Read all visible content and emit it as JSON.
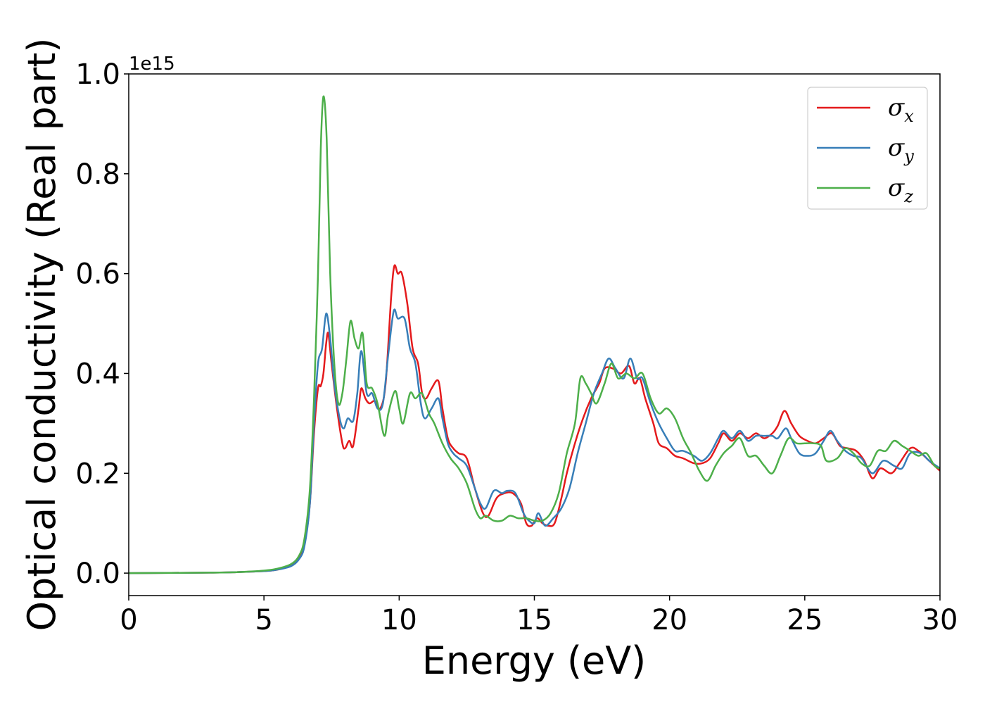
{
  "chart_data": {
    "type": "line",
    "xlabel": "Energy (eV)",
    "ylabel": "Optical conductivity (Real part)",
    "y_offset_label": "1e15",
    "xlim": [
      0,
      30
    ],
    "ylim": [
      -0.045,
      1.0
    ],
    "x_ticks": [
      0,
      5,
      10,
      15,
      20,
      25,
      30
    ],
    "x_tick_labels": [
      "0",
      "5",
      "10",
      "15",
      "20",
      "25",
      "30"
    ],
    "y_ticks": [
      0.0,
      0.2,
      0.4,
      0.6,
      0.8,
      1.0
    ],
    "y_tick_labels": [
      "0.0",
      "0.2",
      "0.4",
      "0.6",
      "0.8",
      "1.0"
    ],
    "grid": false,
    "legend_position": "top-right",
    "series": [
      {
        "symbol": "σ",
        "subscript": "x",
        "color": "#e41a1c",
        "points": [
          [
            0,
            0
          ],
          [
            3,
            0.001
          ],
          [
            4,
            0.002
          ],
          [
            5,
            0.004
          ],
          [
            5.5,
            0.007
          ],
          [
            6,
            0.015
          ],
          [
            6.3,
            0.03
          ],
          [
            6.5,
            0.06
          ],
          [
            6.7,
            0.14
          ],
          [
            6.85,
            0.28
          ],
          [
            7.0,
            0.37
          ],
          [
            7.1,
            0.375
          ],
          [
            7.2,
            0.4
          ],
          [
            7.3,
            0.46
          ],
          [
            7.38,
            0.48
          ],
          [
            7.5,
            0.42
          ],
          [
            7.7,
            0.33
          ],
          [
            7.9,
            0.26
          ],
          [
            8.0,
            0.25
          ],
          [
            8.15,
            0.265
          ],
          [
            8.3,
            0.255
          ],
          [
            8.5,
            0.33
          ],
          [
            8.6,
            0.37
          ],
          [
            8.75,
            0.35
          ],
          [
            8.9,
            0.34
          ],
          [
            9.1,
            0.345
          ],
          [
            9.3,
            0.33
          ],
          [
            9.5,
            0.38
          ],
          [
            9.7,
            0.55
          ],
          [
            9.82,
            0.615
          ],
          [
            9.95,
            0.6
          ],
          [
            10.1,
            0.6
          ],
          [
            10.3,
            0.54
          ],
          [
            10.5,
            0.45
          ],
          [
            10.7,
            0.42
          ],
          [
            10.85,
            0.36
          ],
          [
            11.0,
            0.35
          ],
          [
            11.2,
            0.37
          ],
          [
            11.45,
            0.385
          ],
          [
            11.6,
            0.33
          ],
          [
            11.8,
            0.27
          ],
          [
            12.0,
            0.25
          ],
          [
            12.2,
            0.24
          ],
          [
            12.5,
            0.23
          ],
          [
            12.8,
            0.17
          ],
          [
            13.1,
            0.12
          ],
          [
            13.3,
            0.115
          ],
          [
            13.6,
            0.15
          ],
          [
            13.9,
            0.16
          ],
          [
            14.2,
            0.16
          ],
          [
            14.5,
            0.14
          ],
          [
            14.7,
            0.1
          ],
          [
            14.9,
            0.095
          ],
          [
            15.1,
            0.11
          ],
          [
            15.3,
            0.1
          ],
          [
            15.5,
            0.095
          ],
          [
            15.75,
            0.1
          ],
          [
            16.0,
            0.15
          ],
          [
            16.2,
            0.2
          ],
          [
            16.5,
            0.26
          ],
          [
            16.8,
            0.31
          ],
          [
            17.1,
            0.35
          ],
          [
            17.4,
            0.38
          ],
          [
            17.6,
            0.41
          ],
          [
            17.9,
            0.41
          ],
          [
            18.2,
            0.4
          ],
          [
            18.5,
            0.415
          ],
          [
            18.7,
            0.38
          ],
          [
            18.9,
            0.39
          ],
          [
            19.1,
            0.35
          ],
          [
            19.4,
            0.3
          ],
          [
            19.6,
            0.26
          ],
          [
            19.9,
            0.25
          ],
          [
            20.2,
            0.235
          ],
          [
            20.5,
            0.23
          ],
          [
            20.9,
            0.22
          ],
          [
            21.2,
            0.22
          ],
          [
            21.5,
            0.23
          ],
          [
            21.8,
            0.26
          ],
          [
            22.0,
            0.28
          ],
          [
            22.3,
            0.265
          ],
          [
            22.6,
            0.28
          ],
          [
            22.9,
            0.27
          ],
          [
            23.2,
            0.28
          ],
          [
            23.5,
            0.27
          ],
          [
            23.8,
            0.28
          ],
          [
            24.0,
            0.295
          ],
          [
            24.25,
            0.325
          ],
          [
            24.5,
            0.3
          ],
          [
            24.8,
            0.275
          ],
          [
            25.1,
            0.265
          ],
          [
            25.4,
            0.26
          ],
          [
            25.7,
            0.27
          ],
          [
            26.0,
            0.28
          ],
          [
            26.3,
            0.255
          ],
          [
            26.6,
            0.25
          ],
          [
            26.9,
            0.245
          ],
          [
            27.2,
            0.225
          ],
          [
            27.5,
            0.19
          ],
          [
            27.8,
            0.21
          ],
          [
            28.2,
            0.2
          ],
          [
            28.5,
            0.22
          ],
          [
            28.9,
            0.25
          ],
          [
            29.2,
            0.245
          ],
          [
            29.6,
            0.225
          ],
          [
            30,
            0.205
          ]
        ]
      },
      {
        "symbol": "σ",
        "subscript": "y",
        "color": "#377eb8",
        "points": [
          [
            0,
            0
          ],
          [
            3,
            0.001
          ],
          [
            4,
            0.002
          ],
          [
            5,
            0.004
          ],
          [
            5.5,
            0.007
          ],
          [
            6,
            0.014
          ],
          [
            6.3,
            0.028
          ],
          [
            6.5,
            0.055
          ],
          [
            6.7,
            0.14
          ],
          [
            6.85,
            0.3
          ],
          [
            7.0,
            0.42
          ],
          [
            7.15,
            0.45
          ],
          [
            7.3,
            0.52
          ],
          [
            7.45,
            0.47
          ],
          [
            7.6,
            0.38
          ],
          [
            7.8,
            0.31
          ],
          [
            7.95,
            0.29
          ],
          [
            8.1,
            0.31
          ],
          [
            8.3,
            0.305
          ],
          [
            8.45,
            0.36
          ],
          [
            8.6,
            0.445
          ],
          [
            8.8,
            0.36
          ],
          [
            9.0,
            0.36
          ],
          [
            9.2,
            0.33
          ],
          [
            9.4,
            0.34
          ],
          [
            9.6,
            0.44
          ],
          [
            9.8,
            0.525
          ],
          [
            9.95,
            0.51
          ],
          [
            10.2,
            0.51
          ],
          [
            10.4,
            0.45
          ],
          [
            10.6,
            0.42
          ],
          [
            10.8,
            0.34
          ],
          [
            10.95,
            0.31
          ],
          [
            11.2,
            0.33
          ],
          [
            11.45,
            0.35
          ],
          [
            11.6,
            0.31
          ],
          [
            11.8,
            0.26
          ],
          [
            12.0,
            0.24
          ],
          [
            12.2,
            0.23
          ],
          [
            12.5,
            0.215
          ],
          [
            12.8,
            0.17
          ],
          [
            13.0,
            0.14
          ],
          [
            13.2,
            0.13
          ],
          [
            13.5,
            0.165
          ],
          [
            13.8,
            0.16
          ],
          [
            14.0,
            0.165
          ],
          [
            14.3,
            0.16
          ],
          [
            14.6,
            0.12
          ],
          [
            14.8,
            0.105
          ],
          [
            15.0,
            0.1
          ],
          [
            15.15,
            0.12
          ],
          [
            15.4,
            0.095
          ],
          [
            15.7,
            0.11
          ],
          [
            16.0,
            0.13
          ],
          [
            16.3,
            0.17
          ],
          [
            16.6,
            0.24
          ],
          [
            16.9,
            0.3
          ],
          [
            17.2,
            0.36
          ],
          [
            17.5,
            0.4
          ],
          [
            17.75,
            0.43
          ],
          [
            18.0,
            0.41
          ],
          [
            18.3,
            0.39
          ],
          [
            18.55,
            0.43
          ],
          [
            18.8,
            0.39
          ],
          [
            19.0,
            0.39
          ],
          [
            19.3,
            0.34
          ],
          [
            19.6,
            0.3
          ],
          [
            19.9,
            0.27
          ],
          [
            20.2,
            0.245
          ],
          [
            20.5,
            0.245
          ],
          [
            20.9,
            0.235
          ],
          [
            21.2,
            0.225
          ],
          [
            21.5,
            0.24
          ],
          [
            21.8,
            0.27
          ],
          [
            22.0,
            0.285
          ],
          [
            22.3,
            0.27
          ],
          [
            22.6,
            0.285
          ],
          [
            22.9,
            0.265
          ],
          [
            23.2,
            0.275
          ],
          [
            23.5,
            0.275
          ],
          [
            23.8,
            0.275
          ],
          [
            24.0,
            0.27
          ],
          [
            24.3,
            0.29
          ],
          [
            24.5,
            0.27
          ],
          [
            24.8,
            0.24
          ],
          [
            25.1,
            0.235
          ],
          [
            25.4,
            0.24
          ],
          [
            25.7,
            0.265
          ],
          [
            25.95,
            0.285
          ],
          [
            26.2,
            0.265
          ],
          [
            26.5,
            0.245
          ],
          [
            26.8,
            0.235
          ],
          [
            27.1,
            0.23
          ],
          [
            27.5,
            0.2
          ],
          [
            27.9,
            0.225
          ],
          [
            28.3,
            0.215
          ],
          [
            28.6,
            0.21
          ],
          [
            28.9,
            0.24
          ],
          [
            29.3,
            0.24
          ],
          [
            29.6,
            0.225
          ],
          [
            30,
            0.21
          ]
        ]
      },
      {
        "symbol": "σ",
        "subscript": "z",
        "color": "#4daf4a",
        "points": [
          [
            0,
            0
          ],
          [
            3,
            0.001
          ],
          [
            4,
            0.002
          ],
          [
            5,
            0.005
          ],
          [
            5.5,
            0.009
          ],
          [
            6,
            0.018
          ],
          [
            6.3,
            0.035
          ],
          [
            6.5,
            0.07
          ],
          [
            6.7,
            0.17
          ],
          [
            6.85,
            0.35
          ],
          [
            7.0,
            0.6
          ],
          [
            7.1,
            0.85
          ],
          [
            7.2,
            0.955
          ],
          [
            7.32,
            0.87
          ],
          [
            7.45,
            0.6
          ],
          [
            7.6,
            0.42
          ],
          [
            7.75,
            0.34
          ],
          [
            7.9,
            0.36
          ],
          [
            8.05,
            0.43
          ],
          [
            8.2,
            0.505
          ],
          [
            8.35,
            0.47
          ],
          [
            8.5,
            0.45
          ],
          [
            8.65,
            0.48
          ],
          [
            8.8,
            0.38
          ],
          [
            9.0,
            0.37
          ],
          [
            9.2,
            0.34
          ],
          [
            9.45,
            0.275
          ],
          [
            9.6,
            0.32
          ],
          [
            9.85,
            0.365
          ],
          [
            10.0,
            0.33
          ],
          [
            10.15,
            0.3
          ],
          [
            10.4,
            0.36
          ],
          [
            10.6,
            0.35
          ],
          [
            10.85,
            0.36
          ],
          [
            11.1,
            0.32
          ],
          [
            11.3,
            0.3
          ],
          [
            11.6,
            0.26
          ],
          [
            11.9,
            0.23
          ],
          [
            12.2,
            0.21
          ],
          [
            12.5,
            0.18
          ],
          [
            12.8,
            0.13
          ],
          [
            13.0,
            0.11
          ],
          [
            13.2,
            0.115
          ],
          [
            13.5,
            0.105
          ],
          [
            13.8,
            0.105
          ],
          [
            14.1,
            0.115
          ],
          [
            14.4,
            0.11
          ],
          [
            14.7,
            0.11
          ],
          [
            15.0,
            0.105
          ],
          [
            15.3,
            0.105
          ],
          [
            15.6,
            0.12
          ],
          [
            15.9,
            0.16
          ],
          [
            16.2,
            0.24
          ],
          [
            16.5,
            0.3
          ],
          [
            16.7,
            0.39
          ],
          [
            16.9,
            0.38
          ],
          [
            17.1,
            0.36
          ],
          [
            17.3,
            0.34
          ],
          [
            17.6,
            0.38
          ],
          [
            17.85,
            0.42
          ],
          [
            18.1,
            0.39
          ],
          [
            18.4,
            0.4
          ],
          [
            18.7,
            0.39
          ],
          [
            19.0,
            0.4
          ],
          [
            19.3,
            0.35
          ],
          [
            19.6,
            0.32
          ],
          [
            19.9,
            0.33
          ],
          [
            20.2,
            0.31
          ],
          [
            20.5,
            0.27
          ],
          [
            20.8,
            0.24
          ],
          [
            21.1,
            0.205
          ],
          [
            21.4,
            0.185
          ],
          [
            21.7,
            0.215
          ],
          [
            22.0,
            0.24
          ],
          [
            22.3,
            0.255
          ],
          [
            22.6,
            0.27
          ],
          [
            22.9,
            0.235
          ],
          [
            23.2,
            0.235
          ],
          [
            23.5,
            0.215
          ],
          [
            23.8,
            0.2
          ],
          [
            24.1,
            0.235
          ],
          [
            24.4,
            0.27
          ],
          [
            24.7,
            0.26
          ],
          [
            25.0,
            0.26
          ],
          [
            25.3,
            0.26
          ],
          [
            25.6,
            0.255
          ],
          [
            25.8,
            0.225
          ],
          [
            26.2,
            0.23
          ],
          [
            26.5,
            0.25
          ],
          [
            26.8,
            0.24
          ],
          [
            27.1,
            0.22
          ],
          [
            27.4,
            0.215
          ],
          [
            27.7,
            0.245
          ],
          [
            28.0,
            0.245
          ],
          [
            28.3,
            0.265
          ],
          [
            28.6,
            0.255
          ],
          [
            28.9,
            0.245
          ],
          [
            29.2,
            0.235
          ],
          [
            29.5,
            0.24
          ],
          [
            29.8,
            0.215
          ],
          [
            30,
            0.21
          ]
        ]
      }
    ]
  }
}
